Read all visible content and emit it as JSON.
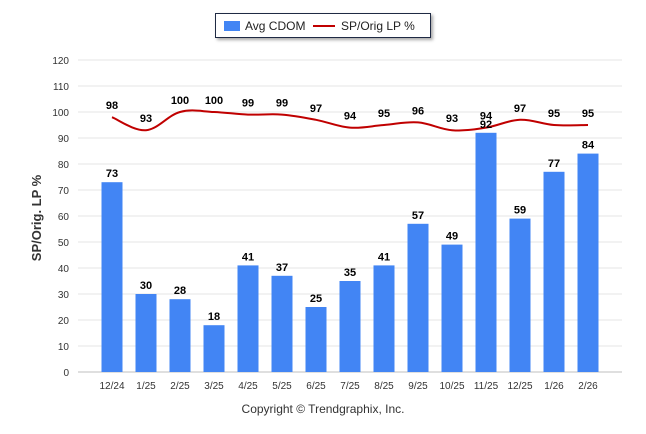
{
  "chart_data": {
    "type": "bar+line",
    "categories": [
      "12/24",
      "1/25",
      "2/25",
      "3/25",
      "4/25",
      "5/25",
      "6/25",
      "7/25",
      "8/25",
      "9/25",
      "10/25",
      "11/25",
      "12/25",
      "1/26",
      "2/26"
    ],
    "series": [
      {
        "name": "Avg CDOM",
        "type": "bar",
        "values": [
          73,
          30,
          28,
          18,
          41,
          37,
          25,
          35,
          41,
          57,
          49,
          92,
          59,
          77,
          84
        ]
      },
      {
        "name": "SP/Orig LP %",
        "type": "line",
        "values": [
          98,
          93,
          100,
          100,
          99,
          99,
          97,
          94,
          95,
          96,
          93,
          94,
          97,
          95,
          95
        ]
      }
    ],
    "ylabel": "SP/Orig. LP %",
    "ylim": [
      0,
      120
    ],
    "yticks": [
      0,
      10,
      20,
      30,
      40,
      50,
      60,
      70,
      80,
      90,
      100,
      110,
      120
    ],
    "legend_position": "top-center",
    "colors": {
      "bar": "#4285f4",
      "line": "#c00000",
      "grid": "#e6e6e6",
      "axis_text": "#333333"
    }
  },
  "legend": {
    "bar_label": "Avg CDOM",
    "line_label": "SP/Orig LP %"
  },
  "footer": {
    "copyright": "Copyright © Trendgraphix, Inc."
  }
}
